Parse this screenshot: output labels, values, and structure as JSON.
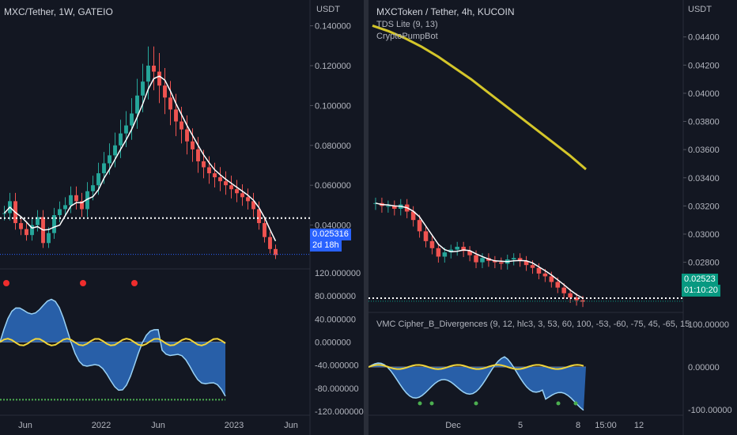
{
  "left": {
    "title": "MXC/Tether, 1W, GATEIO",
    "unit": "USDT",
    "price_ticks": [
      "0.140000",
      "0.120000",
      "0.100000",
      "0.080000",
      "0.060000",
      "0.040000"
    ],
    "price_tag": "0.025316",
    "countdown": "2d 18h",
    "osc_ticks": [
      "120.000000",
      "80.000000",
      "40.000000",
      "0.000000",
      "-40.000000",
      "-80.000000",
      "-120.000000"
    ],
    "x_ticks": [
      "Jun",
      "2022",
      "Jun",
      "2023",
      "Jun"
    ],
    "colors": {
      "price_tag": "#2962ff",
      "sma": "#ffffff"
    }
  },
  "right": {
    "title": "MXCToken / Tether, 4h, KUCOIN",
    "indicator1": "TDS Lite (9, 13)",
    "indicator2": "CryptoPumpBot",
    "unit": "USDT",
    "price_ticks": [
      "0.04400",
      "0.04200",
      "0.04000",
      "0.03800",
      "0.03600",
      "0.03400",
      "0.03200",
      "0.03000",
      "0.02800",
      "0.02600"
    ],
    "price_tag": "0.02523",
    "countdown": "01:10:20",
    "osc_title": "VMC Cipher_B_Divergences (9, 12, hlc3, 3, 53, 60, 100, -53, -60, -75, 45, -65, 15",
    "osc_ticks": [
      "100.00000",
      "0.00000",
      "-100.00000"
    ],
    "x_ticks": [
      "Dec",
      "5",
      "8",
      "15:00",
      "12"
    ],
    "colors": {
      "price_tag": "#089981",
      "ma": "#d4c62a"
    }
  },
  "chart_data": [
    {
      "type": "candlestick",
      "title": "MXC/Tether, 1W, GATEIO",
      "ylabel": "USDT",
      "ylim": [
        0.02,
        0.145
      ],
      "x_ticks": [
        "Jun",
        "2022",
        "Jun",
        "2023",
        "Jun"
      ],
      "last_price": 0.025316,
      "closes": [
        0.046,
        0.052,
        0.041,
        0.038,
        0.035,
        0.04,
        0.044,
        0.031,
        0.036,
        0.045,
        0.048,
        0.05,
        0.055,
        0.052,
        0.048,
        0.057,
        0.06,
        0.066,
        0.071,
        0.075,
        0.08,
        0.086,
        0.09,
        0.096,
        0.105,
        0.112,
        0.12,
        0.117,
        0.11,
        0.104,
        0.098,
        0.092,
        0.088,
        0.082,
        0.078,
        0.072,
        0.069,
        0.066,
        0.064,
        0.062,
        0.06,
        0.058,
        0.056,
        0.054,
        0.052,
        0.048,
        0.041,
        0.034,
        0.028,
        0.025
      ]
    },
    {
      "type": "candlestick",
      "title": "MXCToken / Tether, 4h, KUCOIN",
      "ylabel": "USDT",
      "ylim": [
        0.025,
        0.0455
      ],
      "x_ticks": [
        "Dec",
        "5",
        "8",
        "15:00",
        "12"
      ],
      "last_price": 0.02523,
      "ma_series": [
        0.0448,
        0.0444,
        0.0439,
        0.0433,
        0.0426,
        0.0418,
        0.041,
        0.0401,
        0.0392,
        0.0383,
        0.0374,
        0.0365,
        0.0356,
        0.0346
      ],
      "closes": [
        0.0322,
        0.032,
        0.032,
        0.0318,
        0.0321,
        0.0316,
        0.031,
        0.0302,
        0.0295,
        0.029,
        0.0284,
        0.0287,
        0.0289,
        0.0291,
        0.0288,
        0.0285,
        0.028,
        0.0283,
        0.0281,
        0.028,
        0.0279,
        0.0282,
        0.0283,
        0.0281,
        0.0278,
        0.0276,
        0.0272,
        0.027,
        0.0266,
        0.0262,
        0.0258,
        0.0255,
        0.0253,
        0.0252
      ]
    }
  ]
}
